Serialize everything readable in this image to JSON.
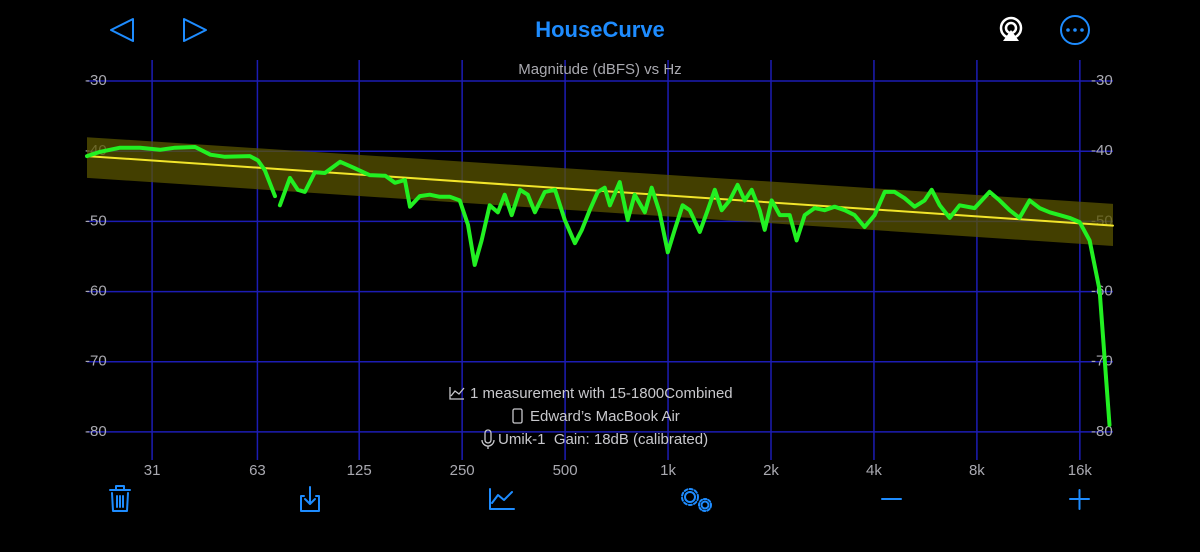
{
  "header": {
    "title": "HouseCurve"
  },
  "chart_data": {
    "type": "line",
    "title": "Magnitude (dBFS) vs Hz",
    "xscale": "log",
    "xlim": [
      20,
      20000
    ],
    "ylim": [
      -84,
      -27
    ],
    "xticks": [
      31,
      63,
      125,
      250,
      500,
      {
        "value": 1000,
        "label": "1k"
      },
      {
        "value": 2000,
        "label": "2k"
      },
      {
        "value": 4000,
        "label": "4k"
      },
      {
        "value": 8000,
        "label": "8k"
      },
      {
        "value": 16000,
        "label": "16k"
      }
    ],
    "yticks": [
      -30,
      -40,
      -50,
      -60,
      -70,
      -80
    ],
    "grid": true,
    "target_band": {
      "color": "#5a5400",
      "x": [
        20,
        20000
      ],
      "upper": [
        -38,
        -47.5
      ],
      "lower": [
        -43.8,
        -53.5
      ]
    },
    "series": [
      {
        "color": "#f2e52a",
        "x": [
          20,
          20000
        ],
        "values": [
          -40.7,
          -50.6
        ]
      },
      {
        "color": "#22f022",
        "x": [
          20,
          21.8,
          25.0,
          28.6,
          32.7,
          36.2,
          41.4,
          45.9,
          50.6,
          59.9,
          63.2,
          66.2,
          70.9,
          72,
          73.3,
          78.4,
          82.7,
          86.7,
          92.7,
          99.2,
          110,
          121,
          134,
          149,
          159,
          170,
          176,
          188,
          201,
          215,
          230,
          246,
          260,
          272,
          285,
          301,
          318,
          333,
          349,
          369,
          389,
          408,
          436,
          467,
          499,
          534,
          560,
          590,
          623,
          653,
          676,
          722,
          762,
          799,
          855,
          896,
          945,
          998,
          1046,
          1103,
          1157,
          1238,
          1306,
          1370,
          1435,
          1514,
          1597,
          1675,
          1756,
          1853,
          1917,
          2009,
          2120,
          2268,
          2377,
          2509,
          2683,
          2870,
          3069,
          3284,
          3512,
          3756,
          4017,
          4299,
          4598,
          4916,
          5259,
          5627,
          5899,
          6226,
          6660,
          7122,
          7878,
          8714,
          9318,
          9969,
          10660,
          11410,
          12200,
          13060,
          13960,
          14930,
          15970,
          17080,
          18270,
          19540
        ],
        "values": [
          -40.7,
          -40.1,
          -39.5,
          -39.5,
          -39.8,
          -39.5,
          -39.4,
          -40.5,
          -40.8,
          -40.7,
          -41.3,
          -42.7,
          -46.4,
          null,
          -47.7,
          -43.8,
          -45.5,
          -45.8,
          -43.0,
          -43.1,
          -41.5,
          -42.4,
          -43.4,
          -43.5,
          -44.5,
          -44.1,
          -47.9,
          -46.4,
          -46.2,
          -46.5,
          -46.5,
          -47.0,
          -50.5,
          -56.2,
          -52.7,
          -47.7,
          -48.7,
          -46.2,
          -49.1,
          -45.5,
          -46.2,
          -48.7,
          -45.8,
          -45.5,
          -49.8,
          -53.1,
          -51.2,
          -48.4,
          -45.8,
          -45.2,
          -47.7,
          -44.4,
          -49.8,
          -46.2,
          -48.7,
          -45.2,
          -48.7,
          -54.4,
          -51.2,
          -47.7,
          -48.4,
          -51.5,
          -48.4,
          -45.5,
          -48.4,
          -47.0,
          -44.8,
          -47.0,
          -45.5,
          -48.4,
          -51.2,
          -47.0,
          -49.1,
          -49.1,
          -52.7,
          -49.1,
          -48.1,
          -48.4,
          -47.9,
          -48.4,
          -49.1,
          -50.8,
          -49.1,
          -45.8,
          -45.8,
          -46.7,
          -47.9,
          -47.0,
          -45.5,
          -47.7,
          -49.5,
          -47.7,
          -48.1,
          -45.8,
          -47.0,
          -48.4,
          -49.5,
          -47.0,
          -48.1,
          -48.7,
          -49.1,
          -49.5,
          -50.1,
          -52.7,
          -59.8,
          -79.0
        ]
      }
    ]
  },
  "info": [
    "1 measurement with 15-1800Combined",
    "Edward’s MacBook Air",
    "Umik-1  Gain: 18dB (calibrated)"
  ]
}
